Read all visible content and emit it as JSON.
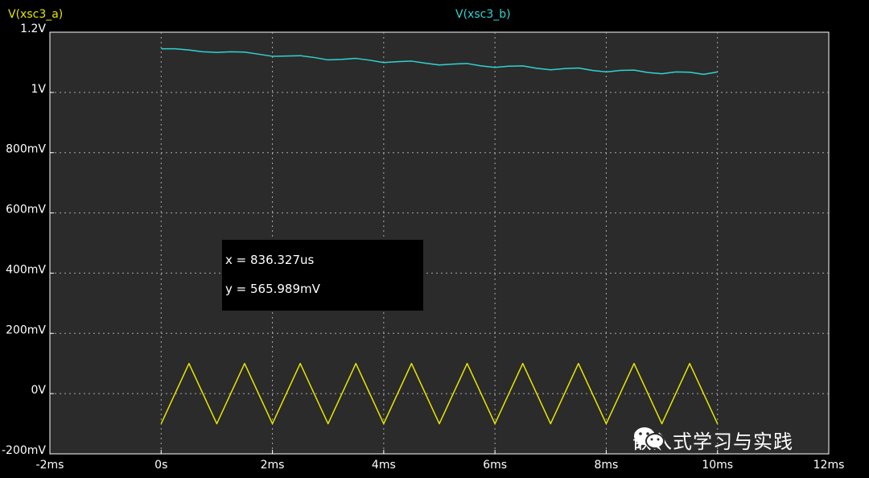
{
  "chart_data": {
    "type": "line",
    "xlim": [
      -2,
      12
    ],
    "ylim": [
      -0.2,
      1.2
    ],
    "x_ticks": [
      {
        "value": -2,
        "label": "-2ms"
      },
      {
        "value": 0,
        "label": "0s"
      },
      {
        "value": 2,
        "label": "2ms"
      },
      {
        "value": 4,
        "label": "4ms"
      },
      {
        "value": 6,
        "label": "6ms"
      },
      {
        "value": 8,
        "label": "8ms"
      },
      {
        "value": 10,
        "label": "10ms"
      },
      {
        "value": 12,
        "label": "12ms"
      }
    ],
    "y_ticks": [
      {
        "value": 1.2,
        "label": "1.2V"
      },
      {
        "value": 1.0,
        "label": "1V"
      },
      {
        "value": 0.8,
        "label": "800mV"
      },
      {
        "value": 0.6,
        "label": "600mV"
      },
      {
        "value": 0.4,
        "label": "400mV"
      },
      {
        "value": 0.2,
        "label": "200mV"
      },
      {
        "value": 0.0,
        "label": "0V"
      },
      {
        "value": -0.2,
        "label": "-200mV"
      }
    ],
    "grid": true,
    "series": [
      {
        "name": "V(xsc3_a)",
        "color": "#e6e600",
        "x": [
          0,
          0.5,
          1.0,
          1.5,
          2.0,
          2.5,
          3.0,
          3.5,
          4.0,
          4.5,
          5.0,
          5.5,
          6.0,
          6.5,
          7.0,
          7.5,
          8.0,
          8.5,
          9.0,
          9.5,
          10.0
        ],
        "y": [
          -0.1,
          0.1,
          -0.1,
          0.1,
          -0.1,
          0.1,
          -0.1,
          0.1,
          -0.1,
          0.1,
          -0.1,
          0.1,
          -0.1,
          0.1,
          -0.1,
          0.1,
          -0.1,
          0.1,
          -0.1,
          0.1,
          -0.1
        ]
      },
      {
        "name": "V(xsc3_b)",
        "color": "#2fd3d3",
        "x": [
          0,
          0.25,
          0.5,
          0.75,
          1.0,
          1.25,
          1.5,
          1.75,
          2.0,
          2.25,
          2.5,
          2.75,
          3.0,
          3.25,
          3.5,
          3.75,
          4.0,
          4.25,
          4.5,
          4.75,
          5.0,
          5.25,
          5.5,
          5.75,
          6.0,
          6.25,
          6.5,
          6.75,
          7.0,
          7.25,
          7.5,
          7.75,
          8.0,
          8.25,
          8.5,
          8.75,
          9.0,
          9.25,
          9.5,
          9.75,
          10.0
        ],
        "y": [
          1.145,
          1.145,
          1.141,
          1.135,
          1.133,
          1.135,
          1.134,
          1.127,
          1.12,
          1.121,
          1.122,
          1.116,
          1.108,
          1.11,
          1.113,
          1.107,
          1.099,
          1.102,
          1.104,
          1.097,
          1.091,
          1.094,
          1.096,
          1.088,
          1.083,
          1.087,
          1.088,
          1.08,
          1.075,
          1.079,
          1.081,
          1.073,
          1.068,
          1.073,
          1.074,
          1.066,
          1.062,
          1.068,
          1.067,
          1.06,
          1.068
        ]
      }
    ]
  },
  "cursor_readout": {
    "x_text": "x = 836.327us",
    "y_text": "y = 565.989mV"
  },
  "watermark": {
    "text": "嵌入式学习与实践",
    "icon": "wechat-icon"
  },
  "colors": {
    "plot_bg": "#2b2b2b",
    "grid": "#a8a8a8",
    "series_a": "#e6e600",
    "series_b": "#2fd3d3"
  }
}
